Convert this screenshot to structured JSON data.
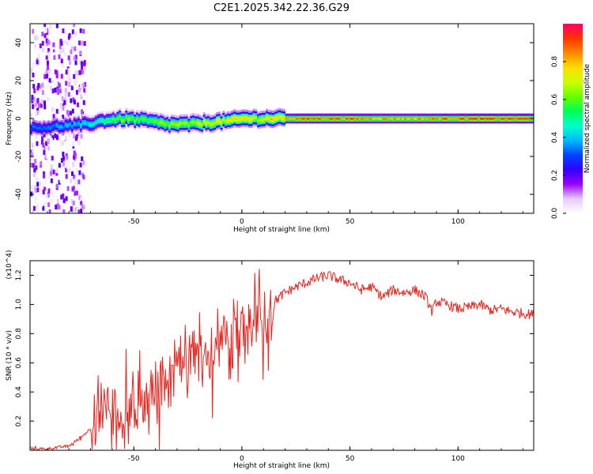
{
  "title": "C2E1.2025.342.22.36.G29",
  "chart_data": [
    {
      "type": "heatmap",
      "name": "spectrogram",
      "xlabel": "Height of straight line (km)",
      "ylabel": "Frequency (Hz)",
      "xlim": [
        -98,
        135
      ],
      "ylim": [
        -50,
        50
      ],
      "xticks": [
        -50,
        0,
        50,
        100
      ],
      "xtick_labels": [
        "-50",
        "0",
        "50",
        "100"
      ],
      "yticks": [
        -40,
        -20,
        0,
        20,
        40
      ],
      "ytick_labels": [
        "-40",
        "-20",
        "0",
        "20",
        "40"
      ],
      "colorbar": {
        "label": "Normalized spectral amplitude",
        "range": [
          0,
          1
        ],
        "ticks": [
          0.0,
          0.2,
          0.4,
          0.6,
          0.8
        ],
        "tick_labels": [
          "0.0",
          "0.2",
          "0.4",
          "0.6",
          "0.8"
        ],
        "colors": [
          "#ffffff",
          "#e6ccff",
          "#9900ff",
          "#3300ff",
          "#0044ff",
          "#00bbff",
          "#00ffcc",
          "#00ff55",
          "#66ff00",
          "#ccff00",
          "#ffdd00",
          "#ff8800",
          "#ff3300",
          "#ff0066"
        ]
      },
      "ridge": {
        "description_free_track": true,
        "x": [
          -98,
          -85,
          -72,
          -65,
          -55,
          -45,
          -35,
          -25,
          -15,
          -5,
          0,
          5,
          15,
          25,
          40,
          60,
          80,
          100,
          120,
          135
        ],
        "frequency": [
          -5,
          -4,
          -3,
          -1,
          0,
          -1,
          -3,
          -3,
          -2,
          -1,
          0,
          0,
          0,
          0,
          0,
          0,
          0,
          0,
          0,
          0
        ],
        "amplitude": [
          0.35,
          0.4,
          0.45,
          0.55,
          0.7,
          0.65,
          0.7,
          0.72,
          0.78,
          0.8,
          0.85,
          0.75,
          0.85,
          0.92,
          0.95,
          0.9,
          0.88,
          0.95,
          0.95,
          0.95
        ]
      }
    },
    {
      "type": "line",
      "name": "snr",
      "xlabel": "Height of straight line (km)",
      "ylabel": "SNR (10 * v/v)",
      "y_multiplier": "(x10^4)",
      "xlim": [
        -98,
        135
      ],
      "ylim": [
        0,
        1.3
      ],
      "xticks": [
        -50,
        0,
        50,
        100
      ],
      "xtick_labels": [
        "-50",
        "0",
        "50",
        "100"
      ],
      "yticks": [
        0.2,
        0.4,
        0.6,
        0.8,
        1.0,
        1.2
      ],
      "ytick_labels": [
        "0.2",
        "0.4",
        "0.6",
        "0.8",
        "1.0",
        "1.2"
      ],
      "color": "#e8251f",
      "series": [
        {
          "name": "SNR",
          "x": [
            -98,
            -90,
            -80,
            -75,
            -70,
            -65,
            -62,
            -58,
            -55,
            -50,
            -45,
            -42,
            -40,
            -37,
            -35,
            -32,
            -30,
            -28,
            -25,
            -22,
            -20,
            -18,
            -15,
            -12,
            -10,
            -7,
            -5,
            -3,
            0,
            3,
            5,
            7,
            10,
            13,
            15,
            20,
            25,
            30,
            35,
            40,
            45,
            50,
            55,
            60,
            65,
            70,
            75,
            80,
            85,
            88,
            90,
            95,
            100,
            105,
            110,
            115,
            120,
            125,
            130,
            135
          ],
          "values": [
            0.01,
            0.01,
            0.03,
            0.08,
            0.15,
            0.25,
            0.3,
            0.22,
            0.28,
            0.3,
            0.35,
            0.42,
            0.38,
            0.48,
            0.45,
            0.55,
            0.5,
            0.62,
            0.58,
            0.6,
            0.65,
            0.62,
            0.7,
            0.72,
            0.68,
            0.78,
            0.75,
            0.8,
            0.82,
            0.85,
            0.78,
            0.9,
            0.88,
            0.95,
            1.02,
            1.08,
            1.12,
            1.15,
            1.18,
            1.2,
            1.17,
            1.15,
            1.1,
            1.12,
            1.05,
            1.1,
            1.08,
            1.1,
            1.05,
            0.95,
            1.02,
            1.0,
            0.97,
            0.98,
            1.0,
            0.96,
            0.97,
            0.95,
            0.94,
            0.93
          ]
        }
      ]
    }
  ]
}
